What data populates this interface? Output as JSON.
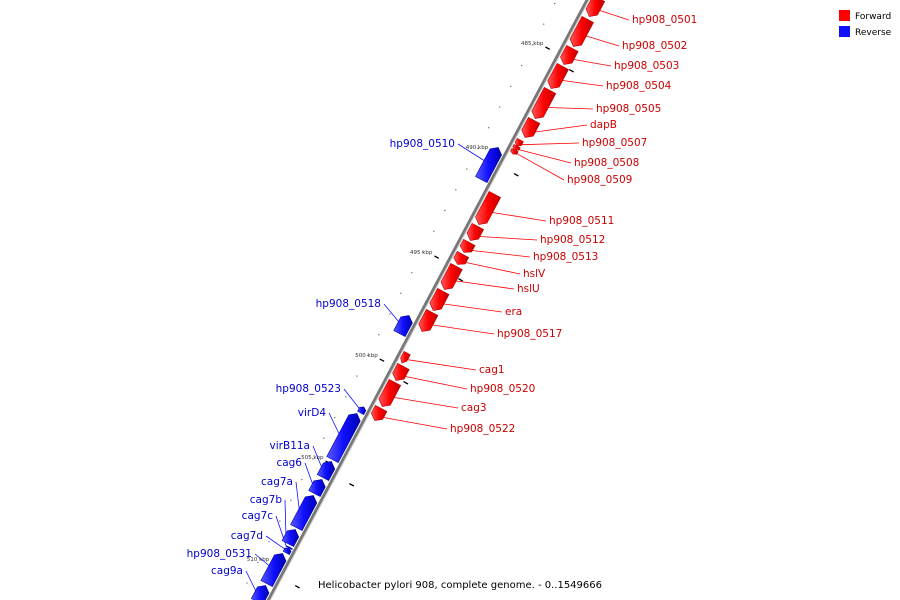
{
  "caption": "Helicobacter pylori 908, complete genome. - 0..1549666",
  "colors": {
    "forward": "#ff0000",
    "reverse": "#1010ff",
    "axis": "#888888"
  },
  "legend": [
    {
      "label": "Forward",
      "color": "#ff0000"
    },
    {
      "label": "Reverse",
      "color": "#1010ff"
    }
  ],
  "ticks": [
    "485 kbp",
    "490 kbp",
    "495 kbp",
    "500 kbp",
    "505 kbp",
    "510 kbp"
  ],
  "genes_forward": [
    "hp908_0501",
    "hp908_0502",
    "hp908_0503",
    "hp908_0504",
    "hp908_0505",
    "dapB",
    "hp908_0507",
    "hp908_0508",
    "hp908_0509",
    "hp908_0511",
    "hp908_0512",
    "hp908_0513",
    "hslV",
    "hslU",
    "era",
    "hp908_0517",
    "cag1",
    "hp908_0520",
    "cag3",
    "hp908_0522"
  ],
  "genes_reverse": [
    "hp908_0510",
    "hp908_0518",
    "hp908_0523",
    "virD4",
    "virB11a",
    "cag6",
    "cag7a",
    "cag7b",
    "cag7c",
    "cag7d",
    "hp908_0531",
    "cag9a"
  ]
}
